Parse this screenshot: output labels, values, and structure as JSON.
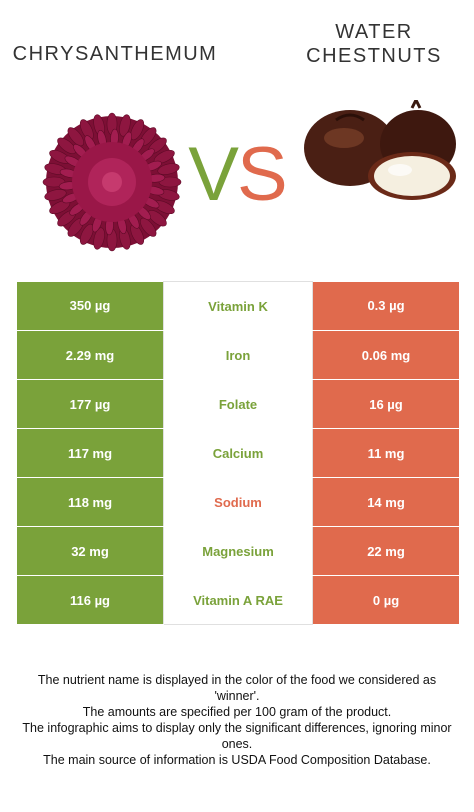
{
  "header": {
    "left_food": "Chrysanthemum",
    "right_food": "Water\nchestnuts",
    "vs_v": "V",
    "vs_s": "S"
  },
  "colors": {
    "winner_left": "#7aa23a",
    "winner_right": "#e06a4d"
  },
  "images": {
    "left": "chrysanthemum-flower-image",
    "right": "water-chestnuts-image"
  },
  "rows": [
    {
      "left": "350 µg",
      "nutrient": "Vitamin K",
      "right": "0.3 µg",
      "winner": "left"
    },
    {
      "left": "2.29 mg",
      "nutrient": "Iron",
      "right": "0.06 mg",
      "winner": "left"
    },
    {
      "left": "177 µg",
      "nutrient": "Folate",
      "right": "16 µg",
      "winner": "left"
    },
    {
      "left": "117 mg",
      "nutrient": "Calcium",
      "right": "11 mg",
      "winner": "left"
    },
    {
      "left": "118 mg",
      "nutrient": "Sodium",
      "right": "14 mg",
      "winner": "right"
    },
    {
      "left": "32 mg",
      "nutrient": "Magnesium",
      "right": "22 mg",
      "winner": "left"
    },
    {
      "left": "116 µg",
      "nutrient": "Vitamin A RAE",
      "right": "0 µg",
      "winner": "left"
    }
  ],
  "footer": {
    "line1": "The nutrient name is displayed in the color of the food we considered as 'winner'.",
    "line2": "The amounts are specified per 100 gram of the product.",
    "line3": "The infographic aims to display only the significant differences, ignoring minor ones.",
    "line4": "The main source of information is USDA Food Composition Database."
  }
}
